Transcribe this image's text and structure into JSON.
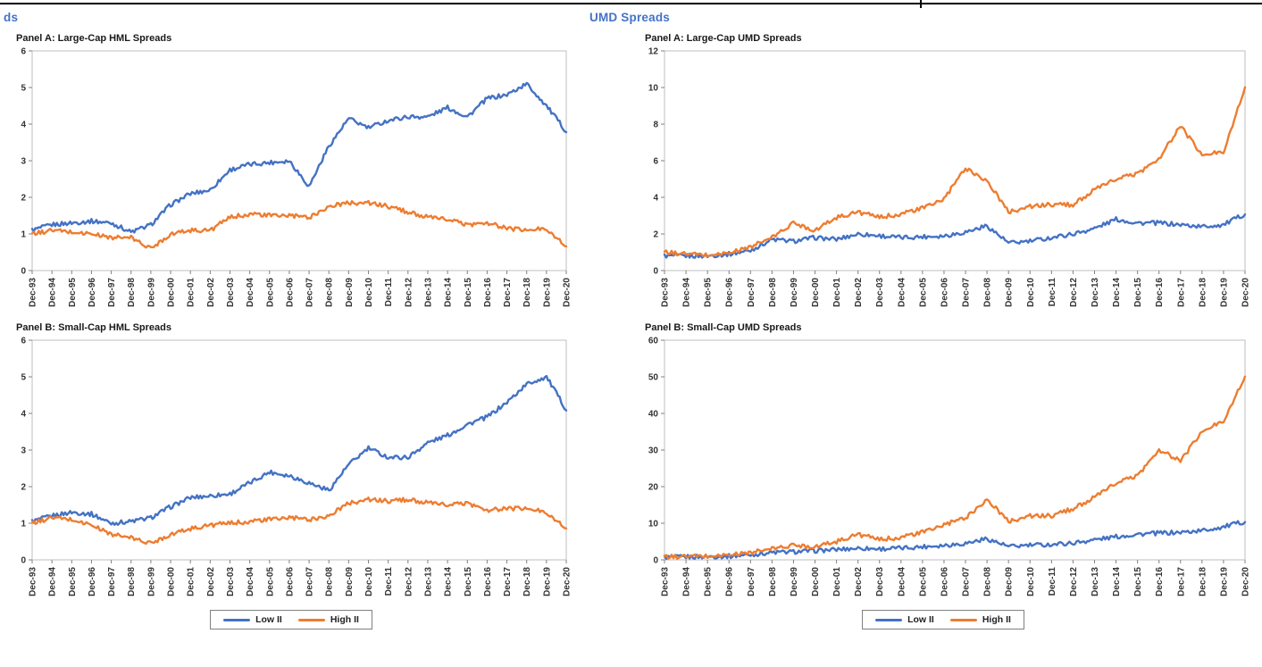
{
  "page": {
    "left_heading": "ds",
    "right_heading": "UMD Spreads",
    "heading_color": "#4472C4"
  },
  "legend": {
    "items": [
      {
        "label": "Low II",
        "color": "#4472C4"
      },
      {
        "label": "High II",
        "color": "#ED7D31"
      }
    ]
  },
  "chart_data": [
    {
      "type": "line",
      "panel_title": "Panel A: Large-Cap HML Spreads",
      "xlabel": "",
      "ylabel": "",
      "ylim": [
        0,
        6
      ],
      "ytick": 1,
      "grid": false,
      "x_labels": [
        "Dec-93",
        "Dec-94",
        "Dec-95",
        "Dec-96",
        "Dec-97",
        "Dec-98",
        "Dec-99",
        "Dec-00",
        "Dec-01",
        "Dec-02",
        "Dec-03",
        "Dec-04",
        "Dec-05",
        "Dec-06",
        "Dec-07",
        "Dec-08",
        "Dec-09",
        "Dec-10",
        "Dec-11",
        "Dec-12",
        "Dec-13",
        "Dec-14",
        "Dec-15",
        "Dec-16",
        "Dec-17",
        "Dec-18",
        "Dec-19",
        "Dec-20"
      ],
      "series": [
        {
          "name": "Low II",
          "color": "#4472C4",
          "values": [
            1.1,
            1.25,
            1.3,
            1.35,
            1.3,
            1.05,
            1.25,
            1.8,
            2.1,
            2.2,
            2.75,
            2.9,
            2.95,
            3.0,
            2.3,
            3.4,
            4.15,
            3.9,
            4.1,
            4.2,
            4.2,
            4.45,
            4.2,
            4.7,
            4.8,
            5.1,
            4.5,
            3.8
          ]
        },
        {
          "name": "High II",
          "color": "#ED7D31",
          "values": [
            1.0,
            1.1,
            1.05,
            1.0,
            0.9,
            0.9,
            0.6,
            1.0,
            1.1,
            1.1,
            1.45,
            1.55,
            1.5,
            1.5,
            1.45,
            1.75,
            1.85,
            1.85,
            1.75,
            1.6,
            1.45,
            1.4,
            1.25,
            1.3,
            1.15,
            1.1,
            1.15,
            0.65
          ]
        }
      ]
    },
    {
      "type": "line",
      "panel_title": "Panel B: Small-Cap HML Spreads",
      "xlabel": "",
      "ylabel": "",
      "ylim": [
        0,
        6
      ],
      "ytick": 1,
      "grid": false,
      "x_labels": [
        "Dec-93",
        "Dec-94",
        "Dec-95",
        "Dec-96",
        "Dec-97",
        "Dec-98",
        "Dec-99",
        "Dec-00",
        "Dec-01",
        "Dec-02",
        "Dec-03",
        "Dec-04",
        "Dec-05",
        "Dec-06",
        "Dec-07",
        "Dec-08",
        "Dec-09",
        "Dec-10",
        "Dec-11",
        "Dec-12",
        "Dec-13",
        "Dec-14",
        "Dec-15",
        "Dec-16",
        "Dec-17",
        "Dec-18",
        "Dec-19",
        "Dec-20"
      ],
      "series": [
        {
          "name": "Low II",
          "color": "#4472C4",
          "values": [
            1.05,
            1.2,
            1.3,
            1.25,
            1.0,
            1.05,
            1.15,
            1.45,
            1.7,
            1.75,
            1.8,
            2.1,
            2.4,
            2.3,
            2.1,
            1.9,
            2.6,
            3.05,
            2.8,
            2.8,
            3.2,
            3.4,
            3.7,
            3.9,
            4.3,
            4.8,
            5.0,
            4.1
          ]
        },
        {
          "name": "High II",
          "color": "#ED7D31",
          "values": [
            1.0,
            1.15,
            1.1,
            0.95,
            0.7,
            0.6,
            0.45,
            0.7,
            0.85,
            0.95,
            1.0,
            1.05,
            1.1,
            1.15,
            1.1,
            1.2,
            1.55,
            1.65,
            1.6,
            1.65,
            1.55,
            1.5,
            1.55,
            1.35,
            1.4,
            1.4,
            1.3,
            0.85
          ]
        }
      ]
    },
    {
      "type": "line",
      "panel_title": "Panel A: Large-Cap UMD Spreads",
      "xlabel": "",
      "ylabel": "",
      "ylim": [
        0,
        12
      ],
      "ytick": 2,
      "grid": false,
      "x_labels": [
        "Dec-93",
        "Dec-94",
        "Dec-95",
        "Dec-96",
        "Dec-97",
        "Dec-98",
        "Dec-99",
        "Dec-00",
        "Dec-01",
        "Dec-02",
        "Dec-03",
        "Dec-04",
        "Dec-05",
        "Dec-06",
        "Dec-07",
        "Dec-08",
        "Dec-09",
        "Dec-10",
        "Dec-11",
        "Dec-12",
        "Dec-13",
        "Dec-14",
        "Dec-15",
        "Dec-16",
        "Dec-17",
        "Dec-18",
        "Dec-19",
        "Dec-20"
      ],
      "series": [
        {
          "name": "Low II",
          "color": "#4472C4",
          "values": [
            0.8,
            0.8,
            0.8,
            0.9,
            1.1,
            1.7,
            1.6,
            1.8,
            1.7,
            2.0,
            1.9,
            1.8,
            1.85,
            1.9,
            2.1,
            2.45,
            1.5,
            1.6,
            1.8,
            2.0,
            2.3,
            2.8,
            2.6,
            2.6,
            2.5,
            2.4,
            2.5,
            3.1
          ]
        },
        {
          "name": "High II",
          "color": "#ED7D31",
          "values": [
            1.0,
            0.9,
            0.85,
            0.95,
            1.3,
            1.8,
            2.6,
            2.2,
            2.9,
            3.2,
            2.9,
            3.1,
            3.4,
            3.9,
            5.6,
            4.9,
            3.2,
            3.5,
            3.6,
            3.6,
            4.4,
            5.0,
            5.3,
            6.1,
            7.9,
            6.3,
            6.5,
            10.0
          ]
        }
      ]
    },
    {
      "type": "line",
      "panel_title": "Panel B: Small-Cap UMD Spreads",
      "xlabel": "",
      "ylabel": "",
      "ylim": [
        0,
        60
      ],
      "ytick": 10,
      "grid": false,
      "x_labels": [
        "Dec-93",
        "Dec-94",
        "Dec-95",
        "Dec-96",
        "Dec-97",
        "Dec-98",
        "Dec-99",
        "Dec-00",
        "Dec-01",
        "Dec-02",
        "Dec-03",
        "Dec-04",
        "Dec-05",
        "Dec-06",
        "Dec-07",
        "Dec-08",
        "Dec-09",
        "Dec-10",
        "Dec-11",
        "Dec-12",
        "Dec-13",
        "Dec-14",
        "Dec-15",
        "Dec-16",
        "Dec-17",
        "Dec-18",
        "Dec-19",
        "Dec-20"
      ],
      "series": [
        {
          "name": "Low II",
          "color": "#4472C4",
          "values": [
            0.7,
            0.8,
            0.9,
            1.0,
            1.4,
            2.0,
            2.2,
            2.5,
            2.8,
            3.2,
            3.0,
            3.2,
            3.6,
            4.0,
            4.5,
            5.8,
            3.6,
            4.0,
            4.2,
            4.6,
            5.5,
            6.3,
            7.0,
            7.3,
            7.5,
            8.0,
            9.0,
            10.5
          ]
        },
        {
          "name": "High II",
          "color": "#ED7D31",
          "values": [
            0.8,
            0.9,
            1.0,
            1.3,
            2.0,
            3.0,
            4.0,
            3.6,
            5.0,
            7.0,
            5.5,
            6.2,
            7.5,
            9.5,
            11.5,
            16.5,
            10.5,
            12.0,
            12.0,
            14.0,
            17.0,
            21.0,
            23.0,
            30.0,
            27.0,
            35.0,
            38.0,
            50.0
          ]
        }
      ]
    }
  ]
}
